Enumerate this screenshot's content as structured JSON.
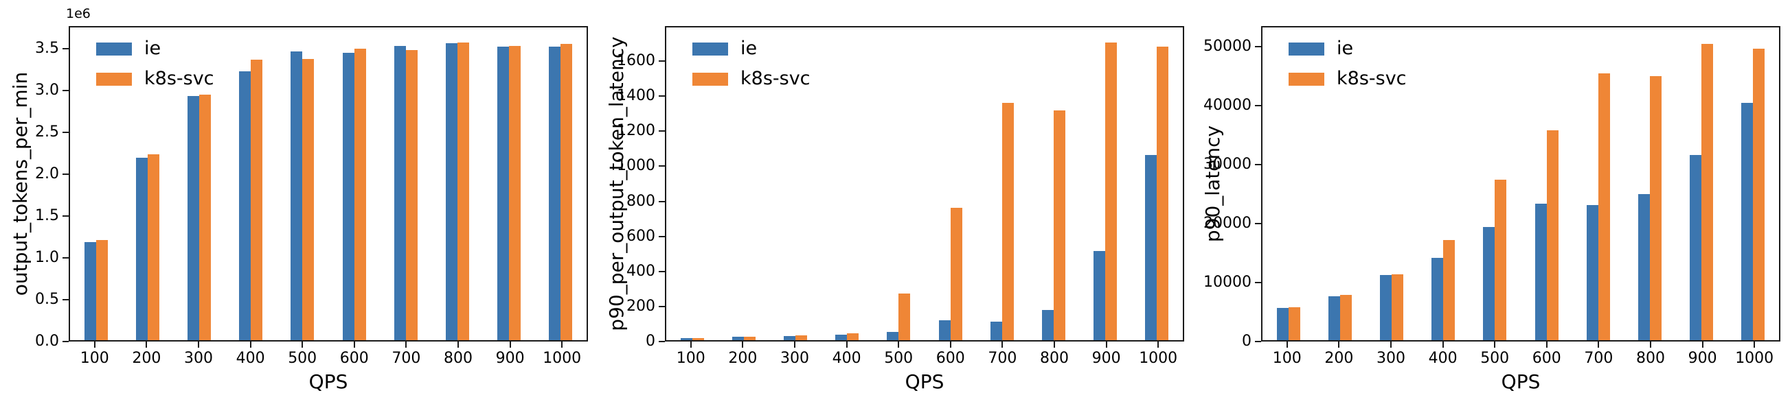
{
  "figure": {
    "background": "#ffffff",
    "text_color": "#000000",
    "series": [
      {
        "name": "ie",
        "color": "#3C76AF"
      },
      {
        "name": "k8s-svc",
        "color": "#EF8636"
      }
    ],
    "legend": {
      "labels": [
        "ie",
        "k8s-svc"
      ],
      "position": "upper-left"
    }
  },
  "chart_data": [
    {
      "type": "bar",
      "title": "",
      "xlabel": "QPS",
      "ylabel": "output_tokens_per_min",
      "y_offset_label": "1e6",
      "grid": false,
      "legend_position": "upper left",
      "categories": [
        100,
        200,
        300,
        400,
        500,
        600,
        700,
        800,
        900,
        1000
      ],
      "series": [
        {
          "name": "ie",
          "values": [
            1170000,
            2180000,
            2920000,
            3210000,
            3450000,
            3430000,
            3520000,
            3550000,
            3510000,
            3510000
          ]
        },
        {
          "name": "k8s-svc",
          "values": [
            1200000,
            2220000,
            2930000,
            3350000,
            3360000,
            3480000,
            3470000,
            3560000,
            3520000,
            3540000
          ]
        }
      ],
      "ylim": [
        0,
        3770000
      ],
      "yticks": [
        0,
        500000,
        1000000,
        1500000,
        2000000,
        2500000,
        3000000,
        3500000
      ],
      "ytick_labels": [
        "0.0",
        "0.5",
        "1.0",
        "1.5",
        "2.0",
        "2.5",
        "3.0",
        "3.5"
      ]
    },
    {
      "type": "bar",
      "title": "",
      "xlabel": "QPS",
      "ylabel": "p90_per_output_token_latency",
      "y_offset_label": "",
      "grid": false,
      "legend_position": "upper left",
      "categories": [
        100,
        200,
        300,
        400,
        500,
        600,
        700,
        800,
        900,
        1000
      ],
      "series": [
        {
          "name": "ie",
          "values": [
            10,
            18,
            25,
            33,
            48,
            115,
            107,
            172,
            510,
            1055
          ]
        },
        {
          "name": "k8s-svc",
          "values": [
            11,
            19,
            26,
            38,
            268,
            755,
            1352,
            1310,
            1700,
            1675
          ]
        }
      ],
      "ylim": [
        0,
        1800
      ],
      "yticks": [
        0,
        200,
        400,
        600,
        800,
        1000,
        1200,
        1400,
        1600
      ],
      "ytick_labels": [
        "0",
        "200",
        "400",
        "600",
        "800",
        "1000",
        "1200",
        "1400",
        "1600"
      ]
    },
    {
      "type": "bar",
      "title": "",
      "xlabel": "QPS",
      "ylabel": "p90_latency",
      "y_offset_label": "",
      "grid": false,
      "legend_position": "upper left",
      "categories": [
        100,
        200,
        300,
        400,
        500,
        600,
        700,
        800,
        900,
        1000
      ],
      "series": [
        {
          "name": "ie",
          "values": [
            5500,
            7500,
            11000,
            14000,
            19200,
            23100,
            22900,
            24800,
            31400,
            40200
          ]
        },
        {
          "name": "k8s-svc",
          "values": [
            5600,
            7700,
            11200,
            17000,
            27200,
            35600,
            45300,
            44800,
            50300,
            49400
          ]
        }
      ],
      "ylim": [
        0,
        53500
      ],
      "yticks": [
        0,
        10000,
        20000,
        30000,
        40000,
        50000
      ],
      "ytick_labels": [
        "0",
        "10000",
        "20000",
        "30000",
        "40000",
        "50000"
      ]
    }
  ]
}
